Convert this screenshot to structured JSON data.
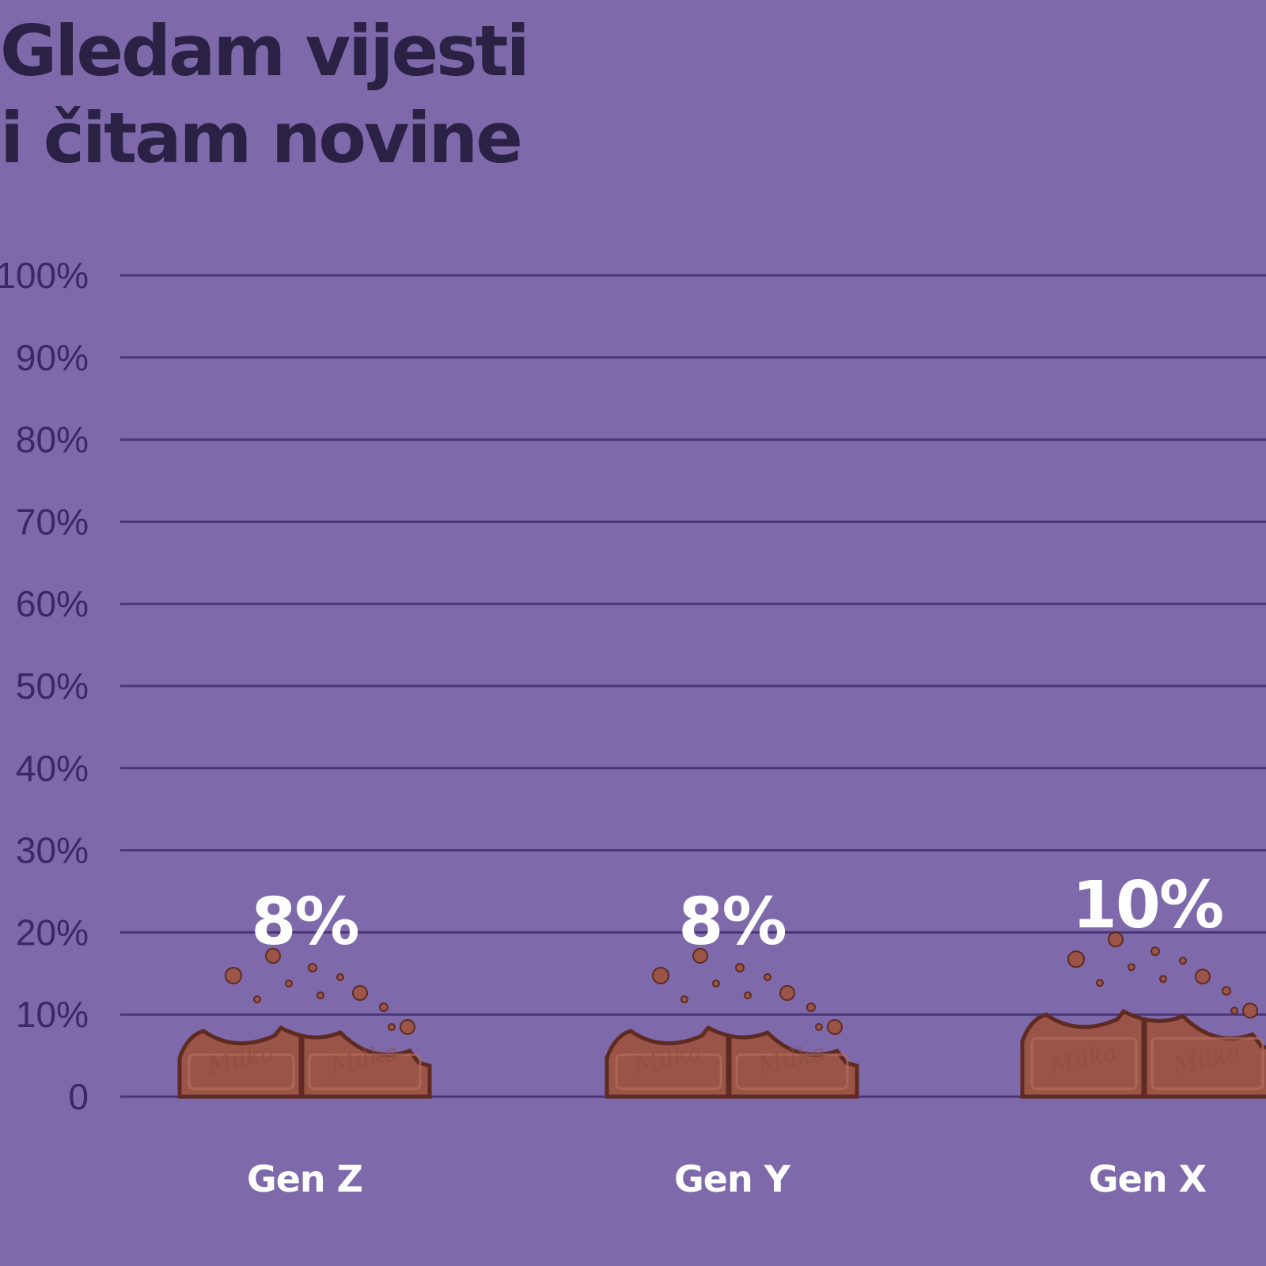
{
  "chart_data": {
    "type": "bar",
    "title_lines": [
      "Gledam vijesti",
      "i čitam novine"
    ],
    "categories": [
      "Gen Z",
      "Gen Y",
      "Gen X"
    ],
    "values": [
      8,
      8,
      10
    ],
    "value_labels": [
      "8%",
      "8%",
      "10%"
    ],
    "ylim": [
      0,
      100
    ],
    "yticks": [
      0,
      10,
      20,
      30,
      40,
      50,
      60,
      70,
      80,
      90,
      100
    ],
    "ytick_labels": [
      "0",
      "10%",
      "20%",
      "30%",
      "40%",
      "50%",
      "60%",
      "70%",
      "80%",
      "90%",
      "100%"
    ],
    "grid": true,
    "bar_style": "bitten chocolate bar pieces",
    "bar_brand_text": "Milka"
  },
  "colors": {
    "background": "#7e69aa",
    "title": "#2b2145",
    "gridline": "#4a3777",
    "tick_label": "#3d2766",
    "label": "#ffffff",
    "chocolate": "#9a5548",
    "chocolate_dark": "#5e2a22"
  }
}
